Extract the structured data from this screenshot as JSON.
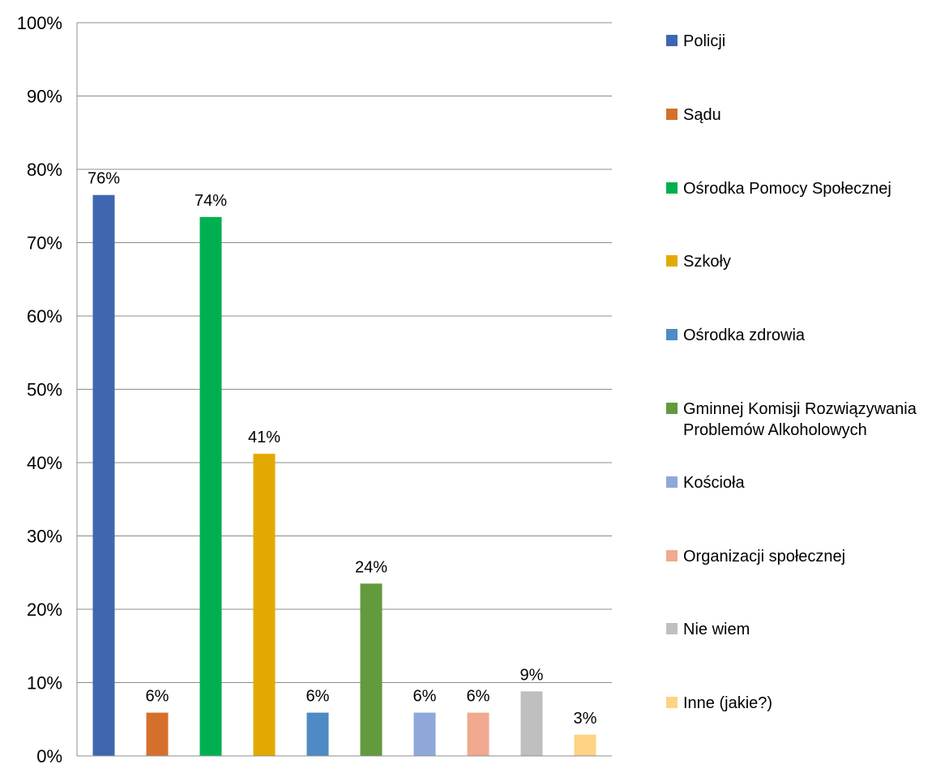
{
  "chart_data": {
    "type": "bar",
    "categories": [
      "Policji",
      "Sądu",
      "Ośrodka Pomocy Społecznej",
      "Szkoły",
      "Ośrodka zdrowia",
      "Gminnej Komisji Rozwiązywania Problemów Alkoholowych",
      "Kościoła",
      "Organizacji społecznej",
      "Nie wiem",
      "Inne (jakie?)"
    ],
    "values": [
      76.5,
      5.9,
      73.5,
      41.2,
      5.9,
      23.5,
      5.9,
      5.9,
      8.8,
      2.9
    ],
    "data_labels": [
      "76%",
      "6%",
      "74%",
      "41%",
      "6%",
      "24%",
      "6%",
      "6%",
      "9%",
      "3%"
    ],
    "colors": [
      "#4066B0",
      "#D5702C",
      "#00B050",
      "#E2AA00",
      "#4E8AC4",
      "#629A3C",
      "#8EA8D9",
      "#F1A98F",
      "#BFBFBF",
      "#FFD284"
    ],
    "ylim": [
      0,
      100
    ],
    "yticks": [
      0,
      10,
      20,
      30,
      40,
      50,
      60,
      70,
      80,
      90,
      100
    ],
    "ytick_labels": [
      "0%",
      "10%",
      "20%",
      "30%",
      "40%",
      "50%",
      "60%",
      "70%",
      "80%",
      "90%",
      "100%"
    ],
    "grid": true,
    "legend_position": "right"
  }
}
